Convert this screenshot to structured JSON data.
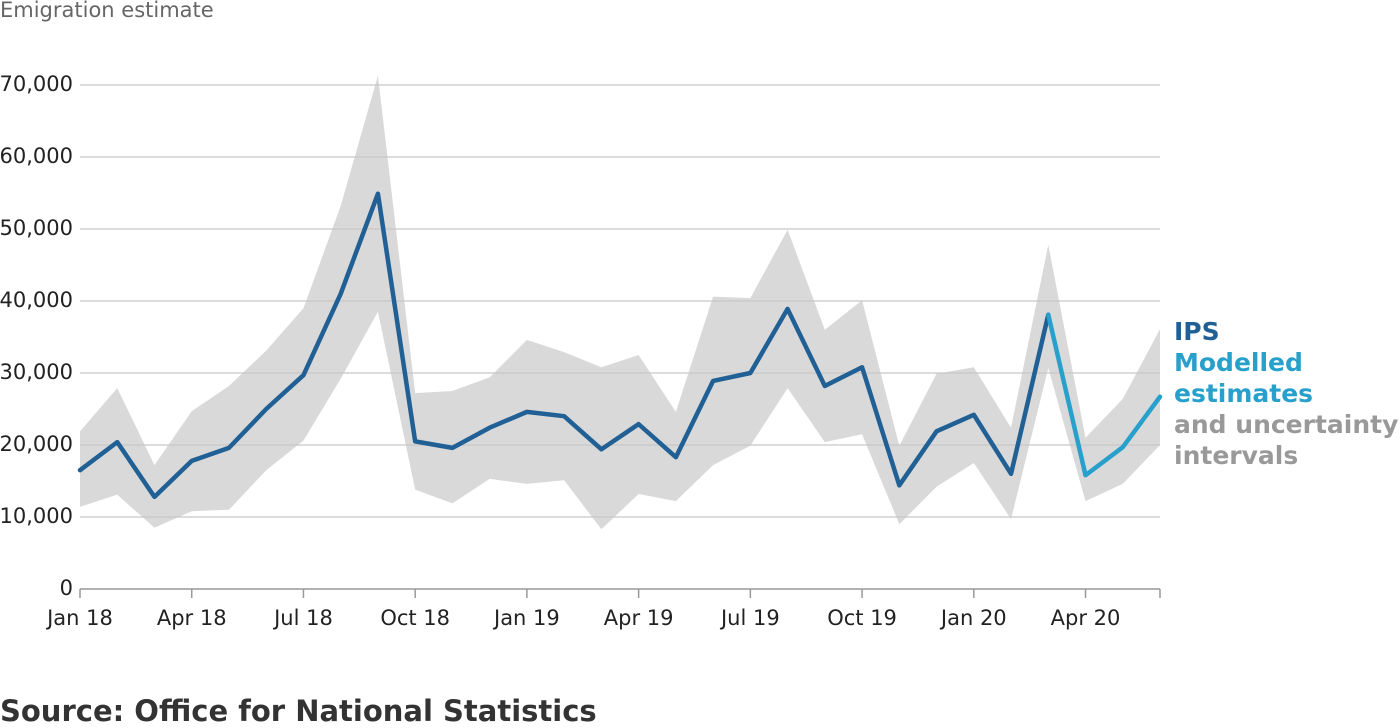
{
  "chart_data": {
    "type": "line",
    "y_axis_label": "Emigration estimate",
    "source": "Source: Office for National Statistics",
    "categories": [
      "Jan 18",
      null,
      null,
      "Apr 18",
      null,
      null,
      "Jul 18",
      null,
      null,
      "Oct 18",
      null,
      null,
      "Jan 19",
      null,
      null,
      "Apr 19",
      null,
      null,
      "Jul 19",
      null,
      null,
      "Oct 19",
      null,
      null,
      "Jan 20",
      null,
      null,
      "Apr 20",
      null,
      null
    ],
    "series": [
      {
        "name": "IPS",
        "color": "#206095",
        "values": [
          16500,
          20400,
          12800,
          17800,
          19600,
          25000,
          29700,
          41000,
          54900,
          20500,
          19600,
          22400,
          24600,
          24000,
          19400,
          22900,
          18300,
          28900,
          30000,
          38900,
          28200,
          30800,
          14400,
          21900,
          24200,
          16000,
          38100,
          null,
          null,
          null
        ]
      },
      {
        "name": "Modelled estimates",
        "color": "#27a0cc",
        "values": [
          null,
          null,
          null,
          null,
          null,
          null,
          null,
          null,
          null,
          null,
          null,
          null,
          null,
          null,
          null,
          null,
          null,
          null,
          null,
          null,
          null,
          null,
          null,
          null,
          null,
          null,
          38100,
          15800,
          19700,
          26700
        ]
      }
    ],
    "band": {
      "name": "and uncertainty intervals",
      "color": "#d9d9d9",
      "label_color": "#999999",
      "upper": [
        21900,
        27900,
        17200,
        24700,
        28200,
        33100,
        39000,
        53200,
        71300,
        27200,
        27500,
        29400,
        34600,
        32900,
        30800,
        32500,
        24600,
        40600,
        40400,
        49900,
        36000,
        40100,
        19900,
        29900,
        30800,
        22400,
        47800,
        21000,
        26400,
        36100
      ],
      "lower": [
        11400,
        13100,
        8500,
        10800,
        11000,
        16500,
        20600,
        29200,
        38500,
        13800,
        11900,
        15300,
        14600,
        15100,
        8300,
        13200,
        12200,
        17200,
        19900,
        27900,
        20400,
        21500,
        9000,
        14200,
        17500,
        9700,
        30700,
        12200,
        14600,
        20000
      ]
    },
    "ylim": [
      0,
      70000
    ],
    "yticks": [
      0,
      {
        "value": 10000,
        "label": "10,000"
      },
      {
        "value": 20000,
        "label": "20,000"
      },
      {
        "value": 30000,
        "label": "30,000"
      },
      {
        "value": 40000,
        "label": "40,000"
      },
      {
        "value": 50000,
        "label": "50,000"
      },
      {
        "value": 60000,
        "label": "60,000"
      },
      {
        "value": 70000,
        "label": "70,000"
      }
    ],
    "grid": true
  }
}
